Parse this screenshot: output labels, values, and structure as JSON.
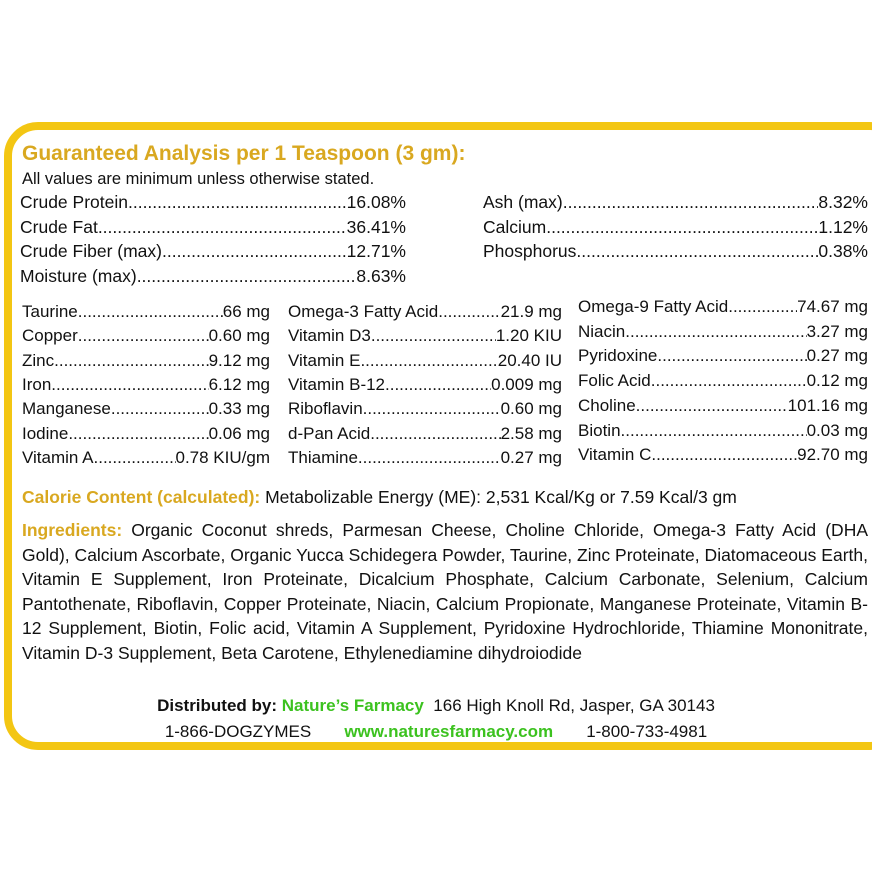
{
  "title": "Guaranteed Analysis per 1 Teaspoon (3 gm):",
  "note": "All values are minimum unless otherwise stated.",
  "analysis_left": [
    {
      "label": "Crude Protein",
      "value": "16.08%"
    },
    {
      "label": "Crude Fat",
      "value": "36.41%"
    },
    {
      "label": "Crude Fiber (max)",
      "value": "12.71%"
    },
    {
      "label": "Moisture (max)",
      "value": "8.63%"
    }
  ],
  "analysis_right": [
    {
      "label": "Ash (max)",
      "value": "8.32%"
    },
    {
      "label": "Calcium",
      "value": "1.12%"
    },
    {
      "label": "Phosphorus",
      "value": "0.38%"
    }
  ],
  "nutrients_col1": [
    {
      "label": "Taurine",
      "value": "66 mg"
    },
    {
      "label": "Copper",
      "value": "0.60 mg"
    },
    {
      "label": "Zinc",
      "value": "9.12 mg"
    },
    {
      "label": "Iron",
      "value": "6.12 mg"
    },
    {
      "label": "Manganese",
      "value": "0.33 mg"
    },
    {
      "label": "Iodine",
      "value": "0.06 mg"
    },
    {
      "label": "Vitamin A",
      "value": "0.78 KIU/gm"
    }
  ],
  "nutrients_col2": [
    {
      "label": "Omega-3 Fatty Acid",
      "value": "21.9 mg"
    },
    {
      "label": "Vitamin D3",
      "value": "1.20 KIU"
    },
    {
      "label": "Vitamin E",
      "value": "20.40 IU"
    },
    {
      "label": "Vitamin B-12",
      "value": "0.009 mg"
    },
    {
      "label": "Riboflavin",
      "value": "0.60 mg"
    },
    {
      "label": "d-Pan Acid",
      "value": "2.58 mg"
    },
    {
      "label": "Thiamine",
      "value": "0.27 mg"
    }
  ],
  "nutrients_col3": [
    {
      "label": "Omega-9 Fatty Acid",
      "value": "74.67 mg"
    },
    {
      "label": "Niacin",
      "value": "3.27 mg"
    },
    {
      "label": "Pyridoxine",
      "value": "0.27 mg"
    },
    {
      "label": "Folic Acid",
      "value": "0.12 mg"
    },
    {
      "label": "Choline",
      "value": "101.16 mg"
    },
    {
      "label": "Biotin",
      "value": "0.03 mg"
    },
    {
      "label": "Vitamin C",
      "value": "92.70 mg"
    }
  ],
  "calorie": {
    "label": "Calorie Content (calculated):",
    "text": " Metabolizable Energy (ME): 2,531 Kcal/Kg or 7.59 Kcal/3 gm"
  },
  "ingredients": {
    "label": "Ingredients:",
    "text": "  Organic Coconut shreds, Parmesan Cheese, Choline Chloride, Omega-3 Fatty Acid (DHA Gold), Calcium Ascorbate, Organic Yucca Schidegera Powder, Taurine, Zinc Proteinate, Diatomaceous Earth, Vitamin E Supplement, Iron Proteinate, Dicalcium Phosphate, Calcium Carbonate, Selenium, Calcium Pantothenate, Riboflavin, Copper Proteinate, Niacin, Calcium Propionate, Manganese Proteinate, Vitamin B-12 Supplement, Biotin, Folic acid, Vitamin A Supplement, Pyridoxine Hydrochloride, Thiamine Mononitrate, Vitamin D-3 Supplement, Beta Carotene, Ethylenediamine dihydroiodide"
  },
  "distributor": {
    "label": "Distributed by:",
    "name": "Nature’s Farmacy",
    "address": "166 High Knoll Rd,  Jasper, GA 30143",
    "phone1": "1-866-DOGZYMES",
    "website": "www.naturesfarmacy.com",
    "phone2": "1-800-733-4981"
  },
  "colors": {
    "border": "#f3c613",
    "heading": "#d9a820",
    "brand_green": "#3cc21f"
  }
}
